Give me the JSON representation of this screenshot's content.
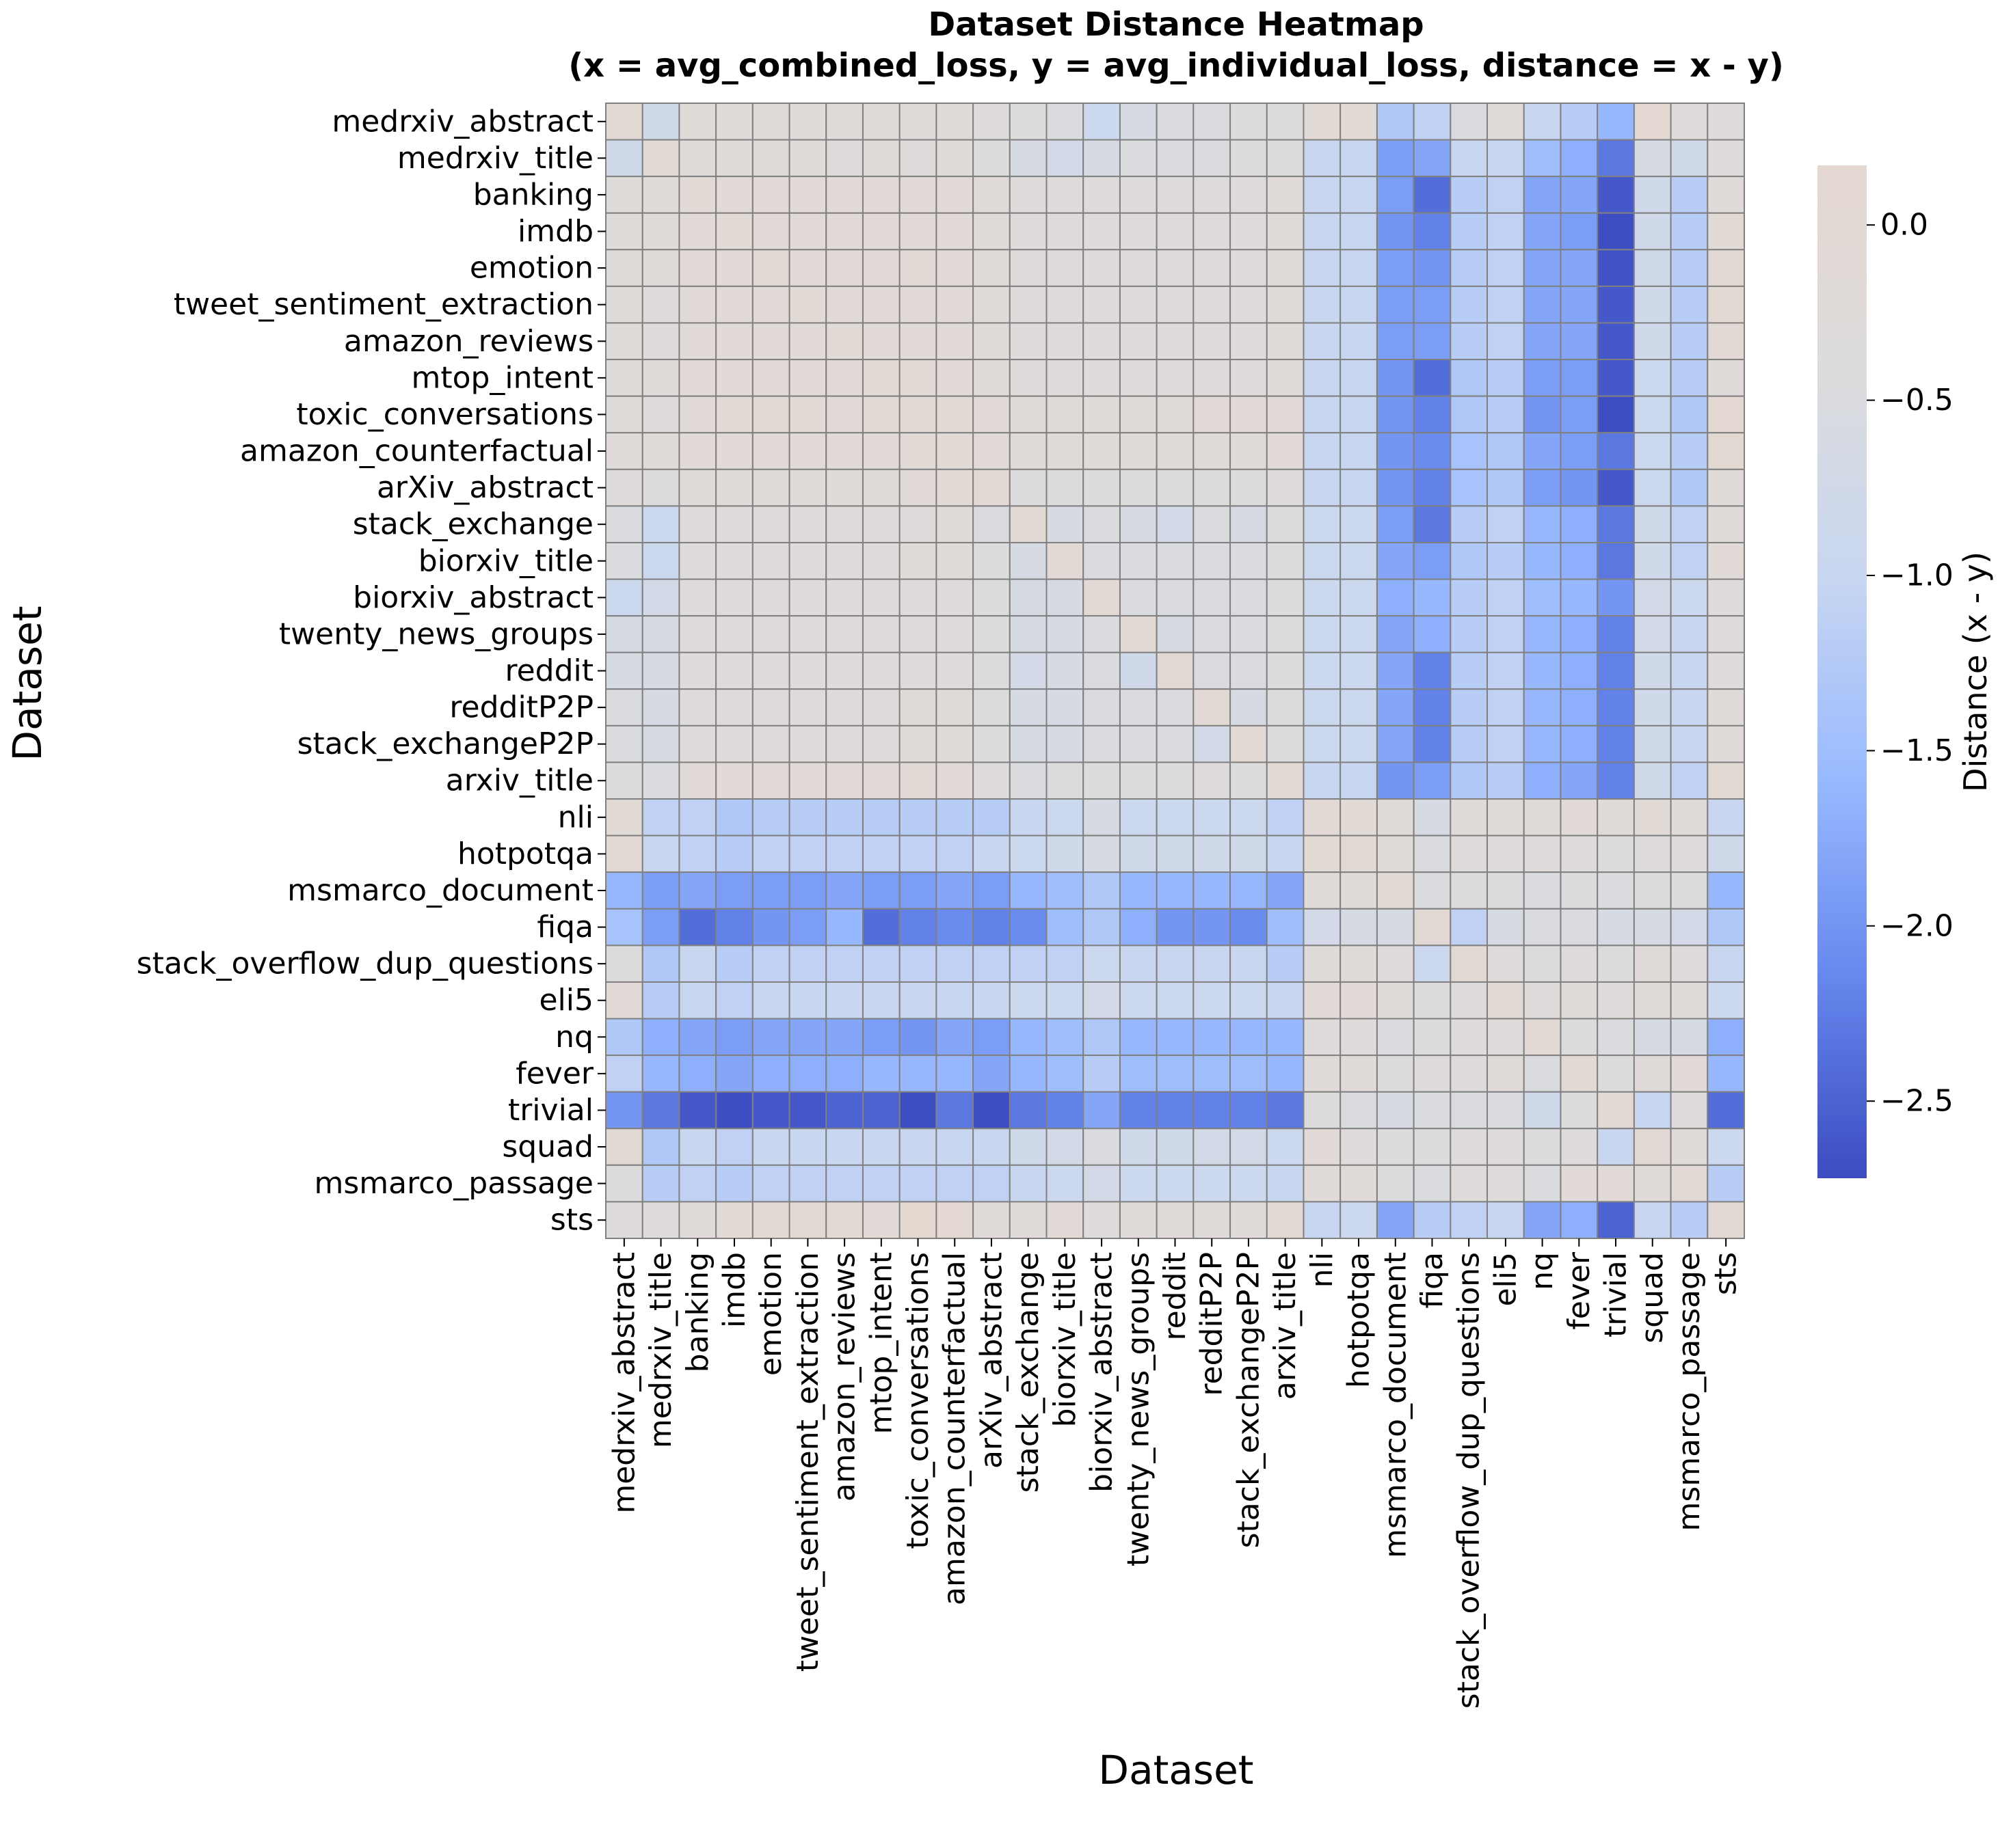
{
  "chart_data": {
    "type": "heatmap",
    "title": "Dataset Distance Heatmap",
    "subtitle": "(x = avg_combined_loss, y = avg_individual_loss, distance = x - y)",
    "xlabel": "Dataset",
    "ylabel": "Dataset",
    "colorbar_label": "Distance (x - y)",
    "colorbar_range": [
      -2.72,
      0.17
    ],
    "colorbar_ticks": [
      {
        "value": 0.0,
        "label": "0.0"
      },
      {
        "value": -0.5,
        "label": "−0.5"
      },
      {
        "value": -1.0,
        "label": "−1.0"
      },
      {
        "value": -1.5,
        "label": "−1.5"
      },
      {
        "value": -2.0,
        "label": "−2.0"
      },
      {
        "value": -2.5,
        "label": "−2.5"
      }
    ],
    "colormap": [
      "#3b4cc0",
      "#6788ee",
      "#9abbff",
      "#c9d7f0",
      "#dddcdc",
      "#e5d8d1"
    ],
    "grid_color": "#808080",
    "categories": [
      "medrxiv_abstract",
      "medrxiv_title",
      "banking",
      "imdb",
      "emotion",
      "tweet_sentiment_extraction",
      "amazon_reviews",
      "mtop_intent",
      "toxic_conversations",
      "amazon_counterfactual",
      "arXiv_abstract",
      "stack_exchange",
      "biorxiv_title",
      "biorxiv_abstract",
      "twenty_news_groups",
      "reddit",
      "redditP2P",
      "stack_exchangeP2P",
      "arxiv_title",
      "nli",
      "hotpotqa",
      "msmarco_document",
      "fiqa",
      "stack_overflow_dup_questions",
      "eli5",
      "nq",
      "fever",
      "trivial",
      "squad",
      "msmarco_passage",
      "sts"
    ],
    "values": [
      [
        0.0,
        -0.8,
        -0.25,
        -0.25,
        -0.25,
        -0.25,
        -0.25,
        -0.25,
        -0.25,
        -0.2,
        -0.3,
        -0.4,
        -0.5,
        -0.9,
        -0.6,
        -0.5,
        -0.5,
        -0.45,
        -0.35,
        -0.05,
        -0.05,
        -1.3,
        -1.1,
        -0.5,
        -0.2,
        -1.0,
        -1.2,
        -1.6,
        0.1,
        -0.3,
        -0.3
      ],
      [
        -0.8,
        0.0,
        -0.25,
        -0.25,
        -0.25,
        -0.25,
        -0.3,
        -0.25,
        -0.3,
        -0.25,
        -0.4,
        -0.6,
        -0.7,
        -0.6,
        -0.5,
        -0.5,
        -0.5,
        -0.45,
        -0.4,
        -1.0,
        -1.0,
        -1.9,
        -1.8,
        -1.0,
        -1.0,
        -1.5,
        -1.7,
        -2.3,
        -0.6,
        -0.8,
        -0.3
      ],
      [
        -0.25,
        -0.25,
        -0.05,
        -0.1,
        -0.1,
        -0.1,
        -0.1,
        -0.1,
        -0.1,
        -0.1,
        -0.2,
        -0.3,
        -0.3,
        -0.3,
        -0.3,
        -0.3,
        -0.3,
        -0.3,
        -0.2,
        -1.0,
        -1.0,
        -1.9,
        -2.4,
        -1.2,
        -1.1,
        -1.8,
        -1.8,
        -2.6,
        -0.8,
        -1.2,
        -0.2
      ],
      [
        -0.25,
        -0.25,
        -0.1,
        -0.05,
        -0.1,
        -0.1,
        -0.1,
        -0.1,
        -0.1,
        -0.1,
        -0.2,
        -0.3,
        -0.3,
        -0.3,
        -0.3,
        -0.3,
        -0.3,
        -0.3,
        -0.2,
        -1.0,
        -1.0,
        -2.0,
        -2.2,
        -1.2,
        -1.1,
        -1.8,
        -1.9,
        -2.7,
        -0.8,
        -1.2,
        -0.05
      ],
      [
        -0.25,
        -0.25,
        -0.1,
        -0.1,
        -0.05,
        -0.1,
        -0.1,
        -0.1,
        -0.05,
        -0.1,
        -0.2,
        -0.3,
        -0.3,
        -0.3,
        -0.3,
        -0.3,
        -0.3,
        -0.3,
        -0.2,
        -1.0,
        -1.0,
        -1.9,
        -2.0,
        -1.2,
        -1.1,
        -1.8,
        -1.8,
        -2.65,
        -0.8,
        -1.2,
        0.0
      ],
      [
        -0.25,
        -0.3,
        -0.1,
        -0.1,
        -0.1,
        -0.05,
        -0.1,
        -0.1,
        -0.1,
        -0.1,
        -0.2,
        -0.3,
        -0.3,
        -0.3,
        -0.3,
        -0.3,
        -0.3,
        -0.3,
        -0.2,
        -1.0,
        -1.0,
        -1.9,
        -1.9,
        -1.2,
        -1.1,
        -1.8,
        -1.8,
        -2.6,
        -0.8,
        -1.2,
        0.05
      ],
      [
        -0.25,
        -0.3,
        -0.1,
        -0.1,
        -0.1,
        -0.1,
        -0.05,
        -0.1,
        -0.1,
        -0.1,
        -0.2,
        -0.3,
        -0.3,
        -0.3,
        -0.3,
        -0.3,
        -0.3,
        -0.3,
        -0.2,
        -1.0,
        -1.0,
        -1.9,
        -1.9,
        -1.2,
        -1.1,
        -1.8,
        -1.8,
        -2.6,
        -0.8,
        -1.2,
        0.0
      ],
      [
        -0.25,
        -0.25,
        -0.1,
        -0.1,
        -0.1,
        -0.1,
        -0.1,
        -0.05,
        -0.05,
        -0.1,
        -0.2,
        -0.3,
        -0.3,
        -0.3,
        -0.3,
        -0.3,
        -0.3,
        -0.3,
        -0.2,
        -1.0,
        -1.0,
        -2.0,
        -2.4,
        -1.3,
        -1.2,
        -1.9,
        -1.9,
        -2.6,
        -0.9,
        -1.2,
        -0.2
      ],
      [
        -0.25,
        -0.3,
        -0.1,
        -0.05,
        -0.05,
        -0.05,
        -0.1,
        -0.05,
        -0.05,
        -0.05,
        -0.1,
        -0.2,
        -0.2,
        -0.2,
        -0.2,
        -0.2,
        -0.15,
        -0.15,
        -0.1,
        -1.0,
        -1.0,
        -2.0,
        -2.2,
        -1.3,
        -1.2,
        -2.0,
        -1.9,
        -2.7,
        -0.9,
        -1.3,
        0.1
      ],
      [
        -0.2,
        -0.25,
        -0.1,
        -0.1,
        -0.1,
        -0.1,
        -0.1,
        -0.1,
        -0.05,
        -0.05,
        -0.15,
        -0.2,
        -0.2,
        -0.2,
        -0.2,
        -0.2,
        -0.2,
        -0.2,
        -0.15,
        -1.0,
        -1.0,
        -2.0,
        -2.1,
        -1.4,
        -1.3,
        -1.8,
        -1.9,
        -2.3,
        -0.9,
        -1.2,
        0.05
      ],
      [
        -0.3,
        -0.4,
        -0.2,
        -0.2,
        -0.2,
        -0.2,
        -0.2,
        -0.2,
        -0.1,
        -0.05,
        0.0,
        -0.4,
        -0.4,
        -0.4,
        -0.4,
        -0.4,
        -0.4,
        -0.4,
        -0.3,
        -1.0,
        -1.0,
        -2.0,
        -2.2,
        -1.4,
        -1.3,
        -1.9,
        -2.0,
        -2.6,
        -0.9,
        -1.3,
        -0.2
      ],
      [
        -0.5,
        -0.9,
        -0.3,
        -0.3,
        -0.3,
        -0.3,
        -0.3,
        -0.3,
        -0.3,
        -0.2,
        -0.5,
        0.0,
        -0.6,
        -0.5,
        -0.6,
        -0.7,
        -0.5,
        -0.6,
        -0.4,
        -0.9,
        -0.9,
        -1.9,
        -2.3,
        -1.2,
        -1.1,
        -1.6,
        -1.7,
        -2.3,
        -0.8,
        -1.1,
        -0.2
      ],
      [
        -0.5,
        -0.9,
        -0.3,
        -0.3,
        -0.3,
        -0.3,
        -0.3,
        -0.3,
        -0.25,
        -0.25,
        -0.4,
        -0.6,
        0.0,
        -0.5,
        -0.5,
        -0.5,
        -0.5,
        -0.5,
        -0.4,
        -0.9,
        -0.9,
        -1.8,
        -1.9,
        -1.3,
        -1.2,
        -1.6,
        -1.7,
        -2.3,
        -0.8,
        -1.1,
        -0.15
      ],
      [
        -0.9,
        -0.7,
        -0.3,
        -0.3,
        -0.3,
        -0.3,
        -0.3,
        -0.3,
        -0.3,
        -0.3,
        -0.4,
        -0.6,
        -0.6,
        0.0,
        -0.5,
        -0.5,
        -0.5,
        -0.5,
        -0.4,
        -0.9,
        -0.9,
        -1.7,
        -1.6,
        -1.2,
        -1.1,
        -1.5,
        -1.6,
        -2.0,
        -0.7,
        -0.9,
        -0.3
      ],
      [
        -0.6,
        -0.6,
        -0.3,
        -0.3,
        -0.3,
        -0.3,
        -0.3,
        -0.3,
        -0.3,
        -0.3,
        -0.4,
        -0.6,
        -0.6,
        -0.5,
        0.0,
        -0.6,
        -0.5,
        -0.5,
        -0.4,
        -0.9,
        -0.9,
        -1.8,
        -1.7,
        -1.2,
        -1.1,
        -1.6,
        -1.7,
        -2.2,
        -0.7,
        -1.0,
        -0.3
      ],
      [
        -0.6,
        -0.6,
        -0.3,
        -0.3,
        -0.3,
        -0.3,
        -0.3,
        -0.3,
        -0.3,
        -0.3,
        -0.4,
        -0.7,
        -0.6,
        -0.5,
        -0.8,
        0.0,
        -0.5,
        -0.5,
        -0.4,
        -0.9,
        -0.9,
        -1.8,
        -2.2,
        -1.2,
        -1.1,
        -1.6,
        -1.7,
        -2.2,
        -0.8,
        -1.0,
        -0.3
      ],
      [
        -0.5,
        -0.6,
        -0.3,
        -0.3,
        -0.3,
        -0.3,
        -0.3,
        -0.3,
        -0.2,
        -0.2,
        -0.4,
        -0.6,
        -0.6,
        -0.5,
        -0.5,
        -0.5,
        0.0,
        -0.6,
        -0.4,
        -0.9,
        -0.9,
        -1.8,
        -2.2,
        -1.2,
        -1.1,
        -1.6,
        -1.7,
        -2.2,
        -0.8,
        -1.0,
        -0.2
      ],
      [
        -0.5,
        -0.6,
        -0.3,
        -0.3,
        -0.3,
        -0.3,
        -0.3,
        -0.3,
        -0.25,
        -0.25,
        -0.4,
        -0.6,
        -0.6,
        -0.5,
        -0.5,
        -0.5,
        -0.7,
        0.0,
        -0.4,
        -0.9,
        -0.9,
        -1.8,
        -2.2,
        -1.2,
        -1.1,
        -1.6,
        -1.7,
        -2.2,
        -0.8,
        -1.0,
        -0.2
      ],
      [
        -0.4,
        -0.5,
        -0.15,
        -0.1,
        -0.1,
        -0.1,
        -0.1,
        -0.1,
        -0.05,
        -0.1,
        -0.3,
        -0.5,
        -0.4,
        -0.4,
        -0.4,
        -0.4,
        -0.3,
        -0.4,
        0.0,
        -1.0,
        -1.0,
        -2.0,
        -1.9,
        -1.3,
        -1.2,
        -1.7,
        -1.8,
        -2.2,
        -0.8,
        -1.1,
        0.05
      ],
      [
        -0.05,
        -1.1,
        -1.1,
        -1.3,
        -1.2,
        -1.2,
        -1.2,
        -1.2,
        -1.2,
        -1.2,
        -1.2,
        -1.0,
        -0.9,
        -0.6,
        -0.9,
        -0.9,
        -0.9,
        -0.9,
        -1.1,
        0.0,
        -0.05,
        -0.2,
        -0.6,
        -0.2,
        -0.2,
        -0.2,
        -0.1,
        -0.2,
        -0.05,
        -0.2,
        -1.0
      ],
      [
        0.0,
        -1.0,
        -1.1,
        -1.2,
        -1.1,
        -1.1,
        -1.1,
        -1.1,
        -1.1,
        -1.1,
        -1.0,
        -0.9,
        -0.8,
        -0.6,
        -0.8,
        -0.8,
        -0.8,
        -0.8,
        -1.0,
        -0.05,
        0.0,
        -0.2,
        -0.5,
        -0.3,
        -0.3,
        -0.3,
        -0.3,
        -0.4,
        -0.3,
        -0.3,
        -0.8
      ],
      [
        -1.6,
        -1.9,
        -1.8,
        -1.9,
        -1.9,
        -1.9,
        -1.8,
        -1.9,
        -1.9,
        -1.8,
        -1.9,
        -1.6,
        -1.5,
        -1.3,
        -1.6,
        -1.6,
        -1.6,
        -1.6,
        -1.8,
        -0.2,
        -0.2,
        0.0,
        -0.5,
        -0.4,
        -0.4,
        -0.5,
        -0.4,
        -0.5,
        -0.4,
        -0.4,
        -1.6
      ],
      [
        -1.4,
        -1.9,
        -2.4,
        -2.2,
        -2.0,
        -1.9,
        -1.6,
        -2.4,
        -2.2,
        -2.1,
        -2.2,
        -2.1,
        -1.5,
        -1.3,
        -1.7,
        -2.0,
        -2.0,
        -2.1,
        -1.5,
        -0.7,
        -0.6,
        -0.6,
        0.0,
        -1.1,
        -0.6,
        -0.5,
        -0.5,
        -0.6,
        -0.6,
        -0.7,
        -1.3
      ],
      [
        -0.4,
        -1.3,
        -1.0,
        -1.2,
        -1.1,
        -1.1,
        -1.1,
        -1.1,
        -1.1,
        -1.1,
        -1.1,
        -1.1,
        -1.1,
        -0.9,
        -1.0,
        -1.0,
        -1.0,
        -1.0,
        -1.2,
        -0.2,
        -0.2,
        -0.3,
        -0.9,
        0.0,
        -0.3,
        -0.4,
        -0.3,
        -0.4,
        -0.2,
        -0.3,
        -1.0
      ],
      [
        -0.1,
        -1.2,
        -1.0,
        -1.1,
        -1.0,
        -1.0,
        -1.0,
        -1.0,
        -1.0,
        -1.0,
        -1.0,
        -0.9,
        -0.9,
        -0.7,
        -0.9,
        -0.9,
        -0.9,
        -0.9,
        -1.0,
        -0.15,
        -0.15,
        -0.2,
        -0.4,
        -0.3,
        0.0,
        -0.3,
        -0.2,
        -0.3,
        -0.2,
        -0.2,
        -0.9
      ],
      [
        -1.3,
        -1.7,
        -1.8,
        -1.9,
        -1.8,
        -1.8,
        -1.8,
        -1.9,
        -2.0,
        -1.8,
        -1.9,
        -1.6,
        -1.5,
        -1.3,
        -1.6,
        -1.6,
        -1.6,
        -1.6,
        -1.6,
        -0.3,
        -0.3,
        -0.5,
        -0.4,
        -0.3,
        -0.3,
        0.0,
        -0.4,
        -0.5,
        -0.6,
        -0.6,
        -1.7
      ],
      [
        -1.1,
        -1.6,
        -1.7,
        -1.8,
        -1.7,
        -1.7,
        -1.7,
        -1.6,
        -1.6,
        -1.6,
        -1.8,
        -1.6,
        -1.5,
        -1.2,
        -1.5,
        -1.5,
        -1.5,
        -1.5,
        -1.6,
        -0.2,
        -0.2,
        -0.4,
        -0.3,
        -0.3,
        -0.2,
        -0.5,
        0.0,
        -0.4,
        -0.2,
        -0.15,
        -1.6
      ],
      [
        -2.0,
        -2.3,
        -2.6,
        -2.7,
        -2.6,
        -2.6,
        -2.5,
        -2.5,
        -2.7,
        -2.3,
        -2.7,
        -2.3,
        -2.2,
        -1.8,
        -2.2,
        -2.2,
        -2.2,
        -2.2,
        -2.3,
        -0.4,
        -0.5,
        -0.6,
        -0.5,
        -0.5,
        -0.5,
        -0.8,
        -0.4,
        0.0,
        -1.0,
        -0.3,
        -2.4
      ],
      [
        0.05,
        -1.3,
        -1.0,
        -1.1,
        -1.0,
        -1.0,
        -1.0,
        -1.0,
        -1.0,
        -1.0,
        -1.0,
        -0.8,
        -0.7,
        -0.5,
        -0.8,
        -0.8,
        -0.7,
        -0.7,
        -0.9,
        -0.1,
        -0.3,
        -0.4,
        -0.4,
        -0.3,
        -0.3,
        -0.4,
        -0.3,
        -1.0,
        0.0,
        -0.2,
        -0.9
      ],
      [
        -0.4,
        -1.2,
        -1.1,
        -1.2,
        -1.1,
        -1.1,
        -1.1,
        -1.1,
        -1.1,
        -1.1,
        -1.1,
        -1.0,
        -0.9,
        -0.7,
        -0.9,
        -0.9,
        -0.9,
        -0.9,
        -1.0,
        -0.2,
        -0.2,
        -0.4,
        -0.5,
        -0.3,
        -0.3,
        -0.5,
        -0.1,
        -0.15,
        -0.2,
        0.0,
        -1.2
      ],
      [
        -0.3,
        -0.3,
        -0.2,
        -0.05,
        -0.05,
        0.0,
        -0.05,
        -0.1,
        0.15,
        0.1,
        -0.2,
        -0.2,
        -0.15,
        -0.3,
        -0.2,
        -0.2,
        -0.2,
        -0.2,
        0.05,
        -1.0,
        -0.9,
        -1.8,
        -1.2,
        -1.1,
        -1.0,
        -1.8,
        -1.7,
        -2.5,
        -1.0,
        -1.2,
        0.0
      ]
    ]
  }
}
